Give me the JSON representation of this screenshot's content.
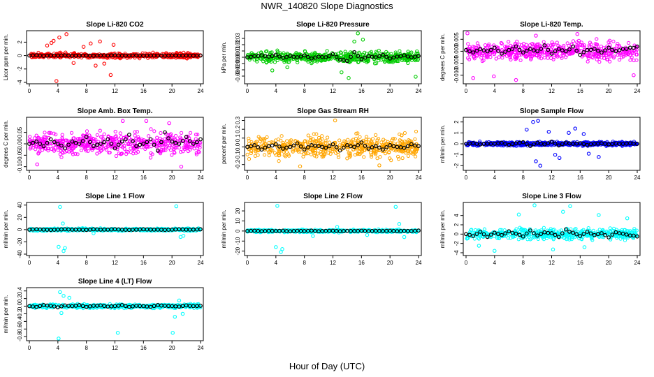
{
  "figure": {
    "title": "NWR_140820  Slope Diagnostics",
    "xlabel": "Hour of Day (UTC)"
  },
  "chart_data": [
    {
      "type": "scatter",
      "title": "Slope Li-820 CO2",
      "ylabel": "Licor ppm per min.",
      "xlim": [
        0,
        24
      ],
      "xticks": [
        0,
        4,
        8,
        12,
        16,
        20,
        24
      ],
      "ylim": [
        -4,
        3.5
      ],
      "yticks": [
        -4,
        -2,
        0,
        2
      ],
      "colors": {
        "points": "#ff0000",
        "means": "#000000"
      },
      "series": [
        {
          "name": "",
          "kind": "scatter",
          "x_range": [
            0,
            24
          ],
          "spread": 0.5,
          "outliers": [
            [
              2.5,
              1.5
            ],
            [
              3.1,
              1.9
            ],
            [
              3.4,
              2.2
            ],
            [
              3.8,
              -3.8
            ],
            [
              4.2,
              2.7
            ],
            [
              5.2,
              3.2
            ],
            [
              6.2,
              -1.1
            ],
            [
              8.6,
              1.8
            ],
            [
              9.3,
              -1.5
            ],
            [
              9.9,
              2.1
            ],
            [
              11.4,
              -2.9
            ],
            [
              11.8,
              1.6
            ],
            [
              10.5,
              -1.2
            ],
            [
              7.6,
              1.3
            ]
          ]
        },
        {
          "name": "",
          "kind": "means",
          "values": [
            0.0,
            0.05,
            -0.05,
            0.02,
            0.0,
            0.03,
            -0.02,
            0.0,
            0.01,
            -0.03,
            0.02,
            0.0,
            0.04,
            -0.01,
            0.0,
            0.02,
            -0.02,
            0.01,
            0.0,
            -0.03,
            0.02,
            0.0,
            0.01,
            -0.01,
            0.0
          ]
        }
      ]
    },
    {
      "type": "scatter",
      "title": "Slope Li-820 Pressure",
      "ylabel": "kPa per min.",
      "xlim": [
        0,
        24
      ],
      "xticks": [
        0,
        4,
        8,
        12,
        16,
        20,
        24
      ],
      "ylim": [
        -0.04,
        0.04
      ],
      "yticks": [
        -0.03,
        -0.02,
        -0.01,
        0.0,
        0.01,
        0.02,
        0.03
      ],
      "colors": {
        "points": "#00cc00",
        "means": "#000000"
      },
      "series": [
        {
          "name": "",
          "kind": "scatter",
          "x_range": [
            0,
            24
          ],
          "spread": 0.013,
          "outliers": [
            [
              15.5,
              0.038
            ],
            [
              14.2,
              -0.033
            ],
            [
              23.6,
              -0.031
            ],
            [
              15.0,
              0.025
            ],
            [
              13.2,
              -0.024
            ],
            [
              16.2,
              0.028
            ],
            [
              3.5,
              -0.021
            ],
            [
              5.6,
              -0.016
            ]
          ]
        },
        {
          "name": "",
          "kind": "means",
          "values": [
            0.0,
            0.002,
            0.003,
            0.001,
            0.004,
            -0.001,
            0.002,
            0.0,
            0.003,
            -0.002,
            0.001,
            0.0,
            0.005,
            -0.004,
            -0.006,
            0.008,
            -0.003,
            0.002,
            0.0,
            0.004,
            -0.002,
            0.001,
            0.003,
            0.0,
            0.002
          ]
        }
      ]
    },
    {
      "type": "scatter",
      "title": "Slope Li-820 Temp.",
      "ylabel": "degrees C per min.",
      "xlim": [
        0,
        24
      ],
      "xticks": [
        0,
        4,
        8,
        12,
        16,
        20,
        24
      ],
      "ylim": [
        -0.013,
        0.008
      ],
      "yticks": [
        -0.01,
        -0.005,
        0.0,
        0.005
      ],
      "colors": {
        "points": "#ff00ff",
        "means": "#000000"
      },
      "series": [
        {
          "name": "",
          "kind": "scatter",
          "x_range": [
            0,
            24
          ],
          "spread": 0.0055,
          "outliers": [
            [
              0.2,
              0.0075
            ],
            [
              3.9,
              -0.0105
            ],
            [
              9.8,
              0.0065
            ],
            [
              15.6,
              0.0072
            ],
            [
              1.0,
              -0.0112
            ],
            [
              23.5,
              -0.01
            ],
            [
              7.0,
              -0.012
            ]
          ]
        },
        {
          "name": "",
          "kind": "means",
          "values": [
            0.0005,
            -0.0005,
            0.001,
            0.0,
            0.0015,
            -0.001,
            0.0005,
            0.002,
            -0.0005,
            0.001,
            0.0,
            0.0025,
            -0.001,
            0.001,
            0.0,
            0.002,
            -0.0015,
            0.0005,
            0.001,
            -0.0005,
            0.0015,
            0.0,
            0.001,
            0.0015,
            0.002
          ]
        }
      ]
    },
    {
      "type": "scatter",
      "title": "Slope Amb. Box Temp.",
      "ylabel": "degrees C per min.",
      "xlim": [
        0,
        24
      ],
      "xticks": [
        0,
        4,
        8,
        12,
        16,
        20,
        24
      ],
      "ylim": [
        -0.11,
        0.11
      ],
      "yticks": [
        -0.1,
        -0.05,
        0.0,
        0.05
      ],
      "colors": {
        "points": "#ff00ff",
        "means": "#000000"
      },
      "series": [
        {
          "name": "",
          "kind": "scatter",
          "x_range": [
            0,
            24
          ],
          "spread": 0.07,
          "outliers": [
            [
              13.1,
              0.1
            ],
            [
              16.4,
              0.1
            ],
            [
              1.1,
              -0.09
            ],
            [
              19.6,
              0.09
            ],
            [
              21.3,
              -0.1
            ]
          ]
        },
        {
          "name": "",
          "kind": "means",
          "values": [
            0.0,
            0.01,
            -0.01,
            0.02,
            0.0,
            -0.02,
            0.01,
            0.0,
            0.03,
            -0.01,
            0.0,
            0.02,
            -0.02,
            0.01,
            0.04,
            -0.01,
            0.0,
            0.02,
            -0.03,
            0.05,
            0.01,
            0.0,
            0.03,
            0.0,
            0.02
          ]
        }
      ]
    },
    {
      "type": "scatter",
      "title": "Slope Gas Stream RH",
      "ylabel": "percent per min.",
      "xlim": [
        0,
        24
      ],
      "xticks": [
        0,
        4,
        8,
        12,
        16,
        20,
        24
      ],
      "ylim": [
        -0.25,
        0.32
      ],
      "yticks": [
        -0.2,
        -0.1,
        0.0,
        0.1,
        0.2,
        0.3
      ],
      "colors": {
        "points": "#ffa500",
        "means": "#000000"
      },
      "series": [
        {
          "name": "",
          "kind": "scatter",
          "x_range": [
            0,
            24
          ],
          "spread": 0.18,
          "outliers": [
            [
              12.3,
              0.3
            ],
            [
              7.4,
              -0.22
            ],
            [
              18.5,
              -0.21
            ]
          ]
        },
        {
          "name": "",
          "kind": "means",
          "values": [
            0.0,
            0.02,
            -0.03,
            0.01,
            0.03,
            -0.02,
            0.0,
            0.04,
            -0.03,
            0.02,
            0.01,
            -0.01,
            0.03,
            -0.04,
            0.02,
            0.0,
            0.05,
            -0.02,
            0.01,
            -0.03,
            0.02,
            0.0,
            -0.01,
            0.03,
            0.01
          ]
        }
      ]
    },
    {
      "type": "scatter",
      "title": "Slope Sample Flow",
      "ylabel": "ml/min per min.",
      "xlim": [
        0,
        24
      ],
      "xticks": [
        0,
        4,
        8,
        12,
        16,
        20,
        24
      ],
      "ylim": [
        -2.3,
        2.3
      ],
      "yticks": [
        -2,
        -1,
        0,
        1,
        2
      ],
      "colors": {
        "points": "#0000ff",
        "means": "#000000"
      },
      "series": [
        {
          "name": "",
          "kind": "scatter",
          "x_range": [
            0,
            24
          ],
          "spread": 0.25,
          "outliers": [
            [
              9.4,
              2.0
            ],
            [
              10.1,
              2.1
            ],
            [
              9.8,
              -1.6
            ],
            [
              10.4,
              -2.0
            ],
            [
              8.5,
              1.3
            ],
            [
              15.3,
              1.4
            ],
            [
              13.1,
              -1.3
            ],
            [
              18.6,
              -1.2
            ],
            [
              14.4,
              1.0
            ],
            [
              17.2,
              -0.9
            ],
            [
              11.6,
              1.1
            ],
            [
              16.5,
              0.9
            ],
            [
              12.5,
              -1.0
            ]
          ]
        },
        {
          "name": "",
          "kind": "means",
          "values": [
            0.0,
            0.05,
            -0.05,
            0.02,
            0.0,
            0.1,
            -0.1,
            0.05,
            0.15,
            -0.2,
            0.1,
            -0.05,
            0.2,
            -0.15,
            0.1,
            0.0,
            0.05,
            -0.1,
            0.0,
            0.05,
            -0.05,
            0.02,
            0.0,
            0.05,
            0.0
          ]
        }
      ]
    },
    {
      "type": "scatter",
      "title": "Slope Line 1 Flow",
      "ylabel": "ml/min per min.",
      "xlim": [
        0,
        24
      ],
      "xticks": [
        0,
        4,
        8,
        12,
        16,
        20,
        24
      ],
      "ylim": [
        -40,
        42
      ],
      "yticks": [
        -40,
        -20,
        0,
        20,
        40
      ],
      "colors": {
        "points": "#00ffff",
        "means": "#000000"
      },
      "series": [
        {
          "name": "",
          "kind": "scatter",
          "x_range": [
            0,
            24
          ],
          "spread": 3,
          "outliers": [
            [
              4.3,
              37
            ],
            [
              4.8,
              -35
            ],
            [
              5.0,
              -30
            ],
            [
              4.1,
              -28
            ],
            [
              20.6,
              38
            ],
            [
              21.2,
              -12
            ],
            [
              21.6,
              -10
            ],
            [
              9.0,
              -6
            ],
            [
              4.7,
              10
            ]
          ]
        },
        {
          "name": "",
          "kind": "means",
          "values": [
            0,
            0.5,
            0,
            -0.5,
            0,
            0.5,
            0,
            0,
            -0.5,
            0.5,
            0,
            0,
            0.5,
            0,
            -0.5,
            0,
            0.5,
            0,
            0,
            -0.5,
            0,
            0.5,
            0,
            0,
            0.5
          ]
        }
      ]
    },
    {
      "type": "scatter",
      "title": "Slope Line 2 Flow",
      "ylabel": "ml/min per min.",
      "xlim": [
        0,
        24
      ],
      "xticks": [
        0,
        4,
        8,
        12,
        16,
        20,
        24
      ],
      "ylim": [
        -23,
        27
      ],
      "yticks": [
        -20,
        -10,
        0,
        10,
        20
      ],
      "colors": {
        "points": "#00ffff",
        "means": "#000000"
      },
      "series": [
        {
          "name": "",
          "kind": "scatter",
          "x_range": [
            0,
            24
          ],
          "spread": 1.8,
          "outliers": [
            [
              4.2,
              25
            ],
            [
              4.7,
              -21
            ],
            [
              4.9,
              -18
            ],
            [
              4.0,
              -16
            ],
            [
              20.8,
              24
            ],
            [
              21.3,
              7
            ],
            [
              22.0,
              -6
            ],
            [
              9.2,
              -5
            ],
            [
              16.8,
              -4
            ],
            [
              12.6,
              4
            ]
          ]
        },
        {
          "name": "",
          "kind": "means",
          "values": [
            0,
            0.3,
            -0.2,
            0.2,
            0,
            0.3,
            -0.3,
            0.2,
            0,
            0.4,
            -0.2,
            0.1,
            0.3,
            -0.2,
            0.1,
            0,
            0.3,
            -0.1,
            0.2,
            0,
            0.3,
            -0.2,
            0.1,
            0,
            0.5
          ]
        }
      ]
    },
    {
      "type": "scatter",
      "title": "Slope Line 3 Flow",
      "ylabel": "ml/min per min.",
      "xlim": [
        0,
        24
      ],
      "xticks": [
        0,
        4,
        8,
        12,
        16,
        20,
        24
      ],
      "ylim": [
        -4.3,
        6.5
      ],
      "yticks": [
        -4,
        -2,
        0,
        2,
        4
      ],
      "colors": {
        "points": "#00ffff",
        "means": "#000000"
      },
      "series": [
        {
          "name": "",
          "kind": "scatter",
          "x_range": [
            0,
            24
          ],
          "spread": 1.6,
          "outliers": [
            [
              9.6,
              6.2
            ],
            [
              14.6,
              6.0
            ],
            [
              4.0,
              -3.6
            ],
            [
              12.2,
              -3.3
            ],
            [
              16.6,
              -2.8
            ],
            [
              7.4,
              4.2
            ],
            [
              18.6,
              4.1
            ],
            [
              22.6,
              3.4
            ],
            [
              1.8,
              -2.5
            ],
            [
              13.6,
              4.8
            ]
          ]
        },
        {
          "name": "",
          "kind": "means",
          "values": [
            0,
            -0.4,
            0.5,
            -0.6,
            0.3,
            -0.2,
            0.6,
            0.1,
            -0.5,
            0.8,
            -0.3,
            0.4,
            0.2,
            -0.6,
            1.0,
            0.3,
            -0.4,
            0.5,
            -0.2,
            0.2,
            -0.7,
            0.4,
            0.1,
            -0.3,
            -0.5
          ]
        }
      ]
    },
    {
      "type": "scatter",
      "title": "Slope Line 4 (LT) Flow",
      "ylabel": "ml/min per min.",
      "xlim": [
        0,
        24
      ],
      "xticks": [
        0,
        4,
        8,
        12,
        16,
        20,
        24
      ],
      "ylim": [
        -0.87,
        0.45
      ],
      "yticks": [
        -0.8,
        -0.6,
        -0.4,
        -0.2,
        0.0,
        0.2,
        0.4
      ],
      "colors": {
        "points": "#00ffff",
        "means": "#000000"
      },
      "series": [
        {
          "name": "",
          "kind": "scatter",
          "x_range": [
            0,
            24
          ],
          "spread": 0.07,
          "outliers": [
            [
              4.1,
              -0.85
            ],
            [
              12.4,
              -0.7
            ],
            [
              20.1,
              -0.7
            ],
            [
              4.3,
              0.37
            ],
            [
              4.8,
              0.27
            ],
            [
              5.6,
              0.22
            ],
            [
              4.5,
              -0.18
            ],
            [
              21.5,
              -0.2
            ],
            [
              21.0,
              0.15
            ],
            [
              20.4,
              -0.28
            ]
          ]
        },
        {
          "name": "",
          "kind": "means",
          "values": [
            0.0,
            -0.02,
            0.03,
            0.01,
            -0.03,
            0.02,
            0.0,
            0.03,
            -0.02,
            0.01,
            0.02,
            -0.01,
            0.0,
            0.03,
            -0.02,
            0.01,
            0.0,
            -0.02,
            0.03,
            0.01,
            0.0,
            -0.01,
            0.02,
            0.0,
            0.01
          ]
        }
      ]
    }
  ]
}
